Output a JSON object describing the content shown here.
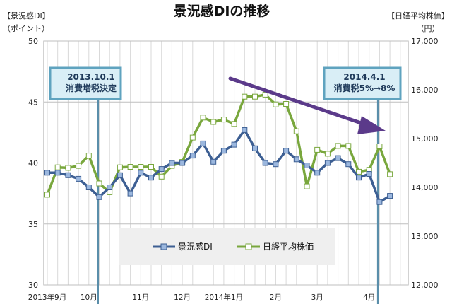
{
  "chart_data": {
    "type": "line",
    "title": "景況感DIの推移",
    "left_axis": {
      "label": "【景況感DI】",
      "unit": "（ポイント）",
      "ticks": [
        "50",
        "45",
        "40",
        "35",
        "30"
      ],
      "range": [
        30,
        50
      ]
    },
    "right_axis": {
      "label": "【日経平均株価】",
      "unit": "（円）",
      "ticks": [
        "17,000",
        "16,000",
        "15,000",
        "14,000",
        "13,000",
        "12,000"
      ],
      "range": [
        12000,
        17000
      ]
    },
    "x_labels": [
      "2013年9月",
      "10月",
      "11月",
      "12月",
      "2014年1月",
      "2月",
      "3月",
      "4月"
    ],
    "x_label_index": [
      0,
      4,
      9,
      13,
      17,
      22,
      26,
      31
    ],
    "grid": true,
    "legend_position": "bottom-center",
    "series": [
      {
        "name": "景況感DI",
        "axis": "left",
        "color": "#3d5f93",
        "values": [
          39.2,
          39.2,
          39.0,
          38.7,
          38.0,
          37.2,
          38.0,
          39.0,
          37.5,
          39.2,
          38.8,
          39.5,
          40.0,
          40.0,
          40.6,
          41.6,
          40.1,
          41.0,
          41.5,
          42.7,
          41.2,
          40.0,
          39.9,
          41.0,
          40.3,
          39.8,
          39.2,
          40.0,
          40.4,
          39.9,
          38.8,
          39.1,
          36.8,
          37.3
        ]
      },
      {
        "name": "日経平均株価",
        "axis": "right",
        "color": "#79a73d",
        "values": [
          13850,
          14410,
          14400,
          14440,
          14650,
          14080,
          13900,
          14410,
          14420,
          14420,
          14420,
          14220,
          14440,
          14520,
          15020,
          15430,
          15340,
          15390,
          15300,
          15860,
          15860,
          15900,
          15700,
          15710,
          15150,
          14020,
          14770,
          14690,
          14850,
          14850,
          14320,
          14360,
          14840,
          14270
        ]
      }
    ],
    "annotations": [
      {
        "text": [
          "2013.10.1",
          "消費増税決定"
        ],
        "at_index": 5
      },
      {
        "text": [
          "2014.4.1",
          "消費税5%→8%"
        ],
        "at_index": 32
      }
    ],
    "trend_arrow": true
  }
}
